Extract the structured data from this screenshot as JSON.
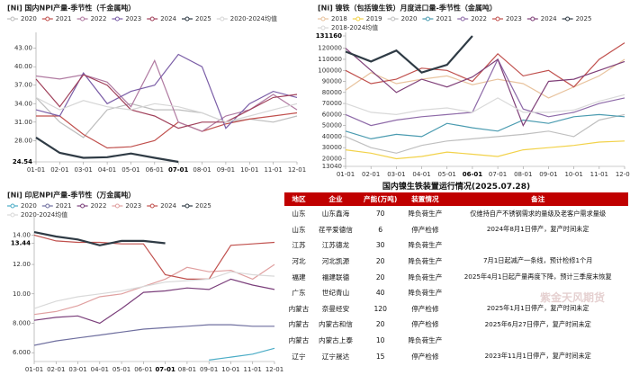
{
  "chart_data": [
    {
      "type": "line",
      "title": "[Ni] 国内NPI产量-季节性（千金属吨）",
      "categories": [
        "01-01",
        "02-01",
        "03-01",
        "04-01",
        "05-01",
        "06-01",
        "07-01",
        "08-01",
        "09-01",
        "10-01",
        "11-01",
        "12-01"
      ],
      "ylim": [
        24.54,
        45
      ],
      "yticks": [
        {
          "value": 24.54,
          "label": "24.54"
        },
        {
          "value": 28,
          "label": "28.00"
        },
        {
          "value": 31,
          "label": "31.00"
        },
        {
          "value": 34,
          "label": "34.00"
        },
        {
          "value": 37,
          "label": "37.00"
        },
        {
          "value": 40,
          "label": "40.00"
        },
        {
          "value": 43,
          "label": "43.00"
        }
      ],
      "grid": false,
      "series": [
        {
          "name": "2020",
          "color": "#bdbdbd",
          "values": [
            35,
            31,
            28.5,
            33,
            34,
            33,
            33,
            32.5,
            31,
            31.5,
            31,
            32
          ]
        },
        {
          "name": "2021",
          "color": "#c0504d",
          "values": [
            32,
            32,
            29,
            26.8,
            27,
            28,
            31,
            29.5,
            30.7,
            31.5,
            32,
            32.5
          ]
        },
        {
          "name": "2022",
          "color": "#b07aa1",
          "values": [
            38.5,
            38,
            38.7,
            37.5,
            33.5,
            41,
            31,
            29.5,
            32,
            33,
            35.5,
            33
          ]
        },
        {
          "name": "2023",
          "color": "#7b5ea7",
          "values": [
            33,
            32,
            39,
            34,
            36,
            37,
            42,
            40,
            30,
            34,
            36,
            35
          ]
        },
        {
          "name": "2024",
          "color": "#a0405a",
          "values": [
            38,
            33.5,
            38.7,
            37,
            33,
            32,
            30,
            31,
            31,
            33,
            35,
            35.5
          ]
        },
        {
          "name": "2025",
          "color": "#2f3b45",
          "values": [
            28.5,
            26,
            25.2,
            25.3,
            25.9,
            25.2,
            24.54,
            null,
            null,
            null,
            null,
            null
          ]
        },
        {
          "name": "2020-2024均值",
          "color": "#d6d6d6",
          "values": [
            35,
            33,
            34.5,
            33.5,
            33,
            34,
            33.5,
            32.5,
            31,
            32,
            33,
            34
          ]
        }
      ]
    },
    {
      "type": "line",
      "title": "[Ni] 镍铁（包括镍生铁）月度进口量-季节性（金属吨）",
      "categories": [
        "01-01",
        "02-01",
        "03-01",
        "04-01",
        "05-01",
        "06-01",
        "07-01",
        "08-01",
        "09-01",
        "10-01",
        "11-01",
        "12-01"
      ],
      "ylim": [
        13040,
        131160
      ],
      "yticks": [
        13040,
        20000,
        30000,
        40000,
        50000,
        60000,
        70000,
        80000,
        90000,
        100000,
        110000,
        120000,
        131160
      ],
      "grid": false,
      "series": [
        {
          "name": "2018",
          "color": "#e8c39e",
          "values": [
            82000,
            98000,
            88000,
            92000,
            95000,
            87000,
            92000,
            88000,
            75000,
            85000,
            95000,
            110000
          ]
        },
        {
          "name": "2019",
          "color": "#f2d24a",
          "values": [
            28000,
            25000,
            20000,
            22000,
            26000,
            24000,
            22000,
            28000,
            30000,
            32000,
            35000,
            36000
          ]
        },
        {
          "name": "2020",
          "color": "#bfbfbf",
          "values": [
            40000,
            30000,
            25000,
            32000,
            36000,
            38000,
            40000,
            42000,
            45000,
            40000,
            55000,
            60000
          ]
        },
        {
          "name": "2021",
          "color": "#4a9bb0",
          "values": [
            45000,
            38000,
            42000,
            40000,
            52000,
            48000,
            45000,
            55000,
            52000,
            58000,
            60000,
            58000
          ]
        },
        {
          "name": "2022",
          "color": "#8e6aa8",
          "values": [
            60000,
            50000,
            55000,
            58000,
            60000,
            62000,
            110000,
            65000,
            58000,
            62000,
            70000,
            75000
          ]
        },
        {
          "name": "2023",
          "color": "#c0504d",
          "values": [
            100000,
            88000,
            92000,
            102000,
            100000,
            90000,
            115000,
            95000,
            100000,
            85000,
            110000,
            125000
          ]
        },
        {
          "name": "2024",
          "color": "#7f3f78",
          "values": [
            120000,
            100000,
            80000,
            92000,
            85000,
            94000,
            110000,
            50000,
            90000,
            92000,
            100000,
            108000
          ]
        },
        {
          "name": "2025",
          "color": "#2f3b45",
          "values": [
            117000,
            108000,
            118000,
            98000,
            105000,
            131160,
            null,
            null,
            null,
            null,
            null,
            null
          ]
        },
        {
          "name": "2018-2024均值",
          "color": "#d9d9d9",
          "values": [
            70000,
            62000,
            60000,
            64000,
            66000,
            62000,
            75000,
            62000,
            62000,
            64000,
            72000,
            78000
          ]
        }
      ]
    },
    {
      "type": "line",
      "title": "[Ni] 印尼NPI产量-季节性（万金属吨）",
      "categories": [
        "01-01",
        "02-01",
        "03-01",
        "04-01",
        "05-01",
        "06-01",
        "07-01",
        "08-01",
        "09-01",
        "10-01",
        "11-01",
        "12-01"
      ],
      "ylim": [
        5.4,
        15
      ],
      "yticks": [
        {
          "value": 6,
          "label": "6.000"
        },
        {
          "value": 8,
          "label": "8.000"
        },
        {
          "value": 10,
          "label": "10.00"
        },
        {
          "value": 12,
          "label": "12.00"
        },
        13.44,
        {
          "value": 14,
          "label": "14.00"
        }
      ],
      "grid": false,
      "series": [
        {
          "name": "2020",
          "color": "#4bacc6",
          "values": [
            null,
            null,
            null,
            null,
            null,
            null,
            null,
            null,
            5.5,
            5.7,
            5.9,
            6.3
          ]
        },
        {
          "name": "2021",
          "color": "#6f6f9f",
          "values": [
            6.5,
            6.8,
            7,
            7.2,
            7.4,
            7.6,
            7.7,
            7.8,
            7.9,
            7.9,
            7.8,
            7.8
          ]
        },
        {
          "name": "2022",
          "color": "#7b3f7b",
          "values": [
            8.2,
            8.4,
            8.5,
            8,
            9,
            10.1,
            10.2,
            10.4,
            10.3,
            11,
            10.6,
            10.3
          ]
        },
        {
          "name": "2023",
          "color": "#e0a0a0",
          "values": [
            8.6,
            8.8,
            9.2,
            9.8,
            10,
            10.5,
            11,
            11.8,
            11.5,
            11.6,
            11,
            12
          ]
        },
        {
          "name": "2024",
          "color": "#c0504d",
          "values": [
            14,
            13.6,
            13.5,
            13.5,
            13.4,
            13.4,
            11.3,
            11,
            11,
            13.3,
            13.4,
            13.5
          ]
        },
        {
          "name": "2025",
          "color": "#2f3b45",
          "values": [
            14.2,
            13.9,
            13.7,
            13.3,
            13.6,
            13.6,
            13.44,
            null,
            null,
            null,
            null,
            null
          ]
        },
        {
          "name": "2020-2024均值",
          "color": "#d9d9d9",
          "values": [
            9,
            9.5,
            9.8,
            10,
            10.2,
            10.5,
            10.8,
            10.9,
            11,
            11.5,
            11.3,
            11.2
          ]
        }
      ]
    }
  ],
  "table": {
    "title": "国内镍生铁装置运行情况(2025.07.28)",
    "header": [
      "地区",
      "企业",
      "产能(万吨)",
      "装置情况",
      "备注"
    ],
    "rows": [
      [
        "山东",
        "山东鑫海",
        "70",
        "降负荷生产",
        "仅维持自产不锈钢需求的量级及老客户需求量级"
      ],
      [
        "山东",
        "荏平爱德信",
        "6",
        "停产检修",
        "2024年8月1日停产，复产时间未定"
      ],
      [
        "江苏",
        "江苏德龙",
        "30",
        "降负荷生产"
      ],
      [
        "河北",
        "河北凯源",
        "20",
        "降负荷生产",
        "7月1日起减产一条线，预计检修1个月"
      ],
      [
        "福建",
        "福建联德",
        "20",
        "降负荷生产",
        "2025年4月1日起产量再度下降，预计三季度末恢复"
      ],
      [
        "广东",
        "世纪青山",
        "40",
        "降负荷生产"
      ],
      [
        "内蒙古",
        "奈曼经安",
        "120",
        "停产检修",
        "2025年1月1日停产，复产时间未定"
      ],
      [
        "内蒙古",
        "内蒙古和信",
        "20",
        "停产检修",
        "2025年6月27日停产，复产时间未定"
      ],
      [
        "内蒙古",
        "内蒙古上泰",
        "10",
        "降负荷生产"
      ],
      [
        "辽宁",
        "辽宁晟达",
        "15",
        "停产检修",
        "2023年11月1日停产，复产时间未定"
      ]
    ],
    "watermark": "紫金天风期货"
  }
}
